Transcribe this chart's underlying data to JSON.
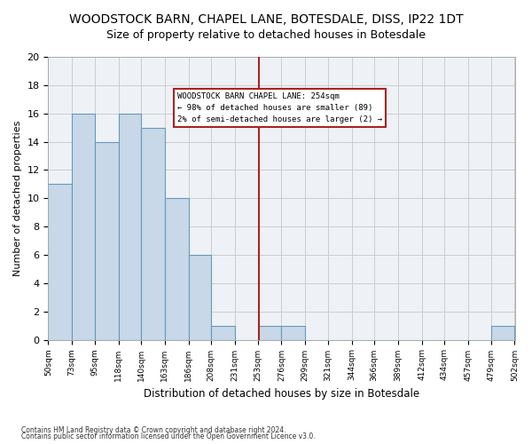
{
  "title1": "WOODSTOCK BARN, CHAPEL LANE, BOTESDALE, DISS, IP22 1DT",
  "title2": "Size of property relative to detached houses in Botesdale",
  "xlabel": "Distribution of detached houses by size in Botesdale",
  "ylabel": "Number of detached properties",
  "footnote1": "Contains HM Land Registry data © Crown copyright and database right 2024.",
  "footnote2": "Contains public sector information licensed under the Open Government Licence v3.0.",
  "bar_edges": [
    50,
    73,
    95,
    118,
    140,
    163,
    186,
    208,
    231,
    253,
    276,
    299,
    321,
    344,
    366,
    389,
    412,
    434,
    457,
    479,
    502
  ],
  "bar_heights": [
    11,
    16,
    14,
    16,
    15,
    10,
    6,
    1,
    0,
    1,
    1,
    0,
    0,
    0,
    0,
    0,
    0,
    0,
    0,
    1
  ],
  "bar_color": "#c8d8e8",
  "bar_edge_color": "#6699bb",
  "vline_x": 254,
  "vline_color": "#aa2222",
  "annotation_box_text": "WOODSTOCK BARN CHAPEL LANE: 254sqm\n← 98% of detached houses are smaller (89)\n2% of semi-detached houses are larger (2) →",
  "annotation_box_color": "#aa2222",
  "ylim": [
    0,
    20
  ],
  "yticks": [
    0,
    2,
    4,
    6,
    8,
    10,
    12,
    14,
    16,
    18,
    20
  ],
  "bg_color": "#eef2f7",
  "grid_color": "#cccccc",
  "title_fontsize": 10,
  "subtitle_fontsize": 9,
  "tick_labels": [
    "50sqm",
    "73sqm",
    "95sqm",
    "118sqm",
    "140sqm",
    "163sqm",
    "186sqm",
    "208sqm",
    "231sqm",
    "253sqm",
    "276sqm",
    "299sqm",
    "321sqm",
    "344sqm",
    "366sqm",
    "389sqm",
    "412sqm",
    "434sqm",
    "457sqm",
    "479sqm",
    "502sqm"
  ]
}
